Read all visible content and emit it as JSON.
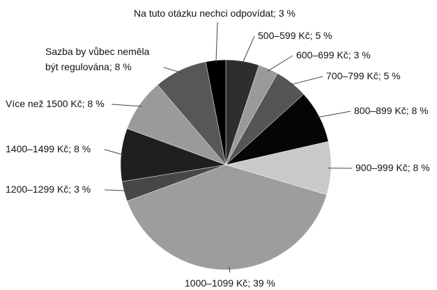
{
  "chart_data": {
    "type": "pie",
    "values": [
      5,
      3,
      5,
      8,
      8,
      39,
      3,
      8,
      8,
      8,
      3
    ],
    "value_labels": [
      "500–599 Kč; 5 %",
      "600–699 Kč; 3 %",
      "700–799 Kč; 5 %",
      "800–899 Kč; 8 %",
      "900–999 Kč; 8 %",
      "1000–1099 Kč; 39 %",
      "1200–1299 Kč; 3 %",
      "1400–1499 Kč; 8 %",
      "Více než 1500 Kč; 8 %",
      "Sazba by vůbec neměla\nbýt regulována; 8 %",
      "Na tuto otázku nechci odpovídat; 3 %"
    ],
    "colors": [
      "#2e2e2e",
      "#9a9a9a",
      "#555555",
      "#050505",
      "#c9c9c9",
      "#9d9d9d",
      "#474747",
      "#1f1f1f",
      "#9a9a9a",
      "#575757",
      "#000000"
    ]
  }
}
